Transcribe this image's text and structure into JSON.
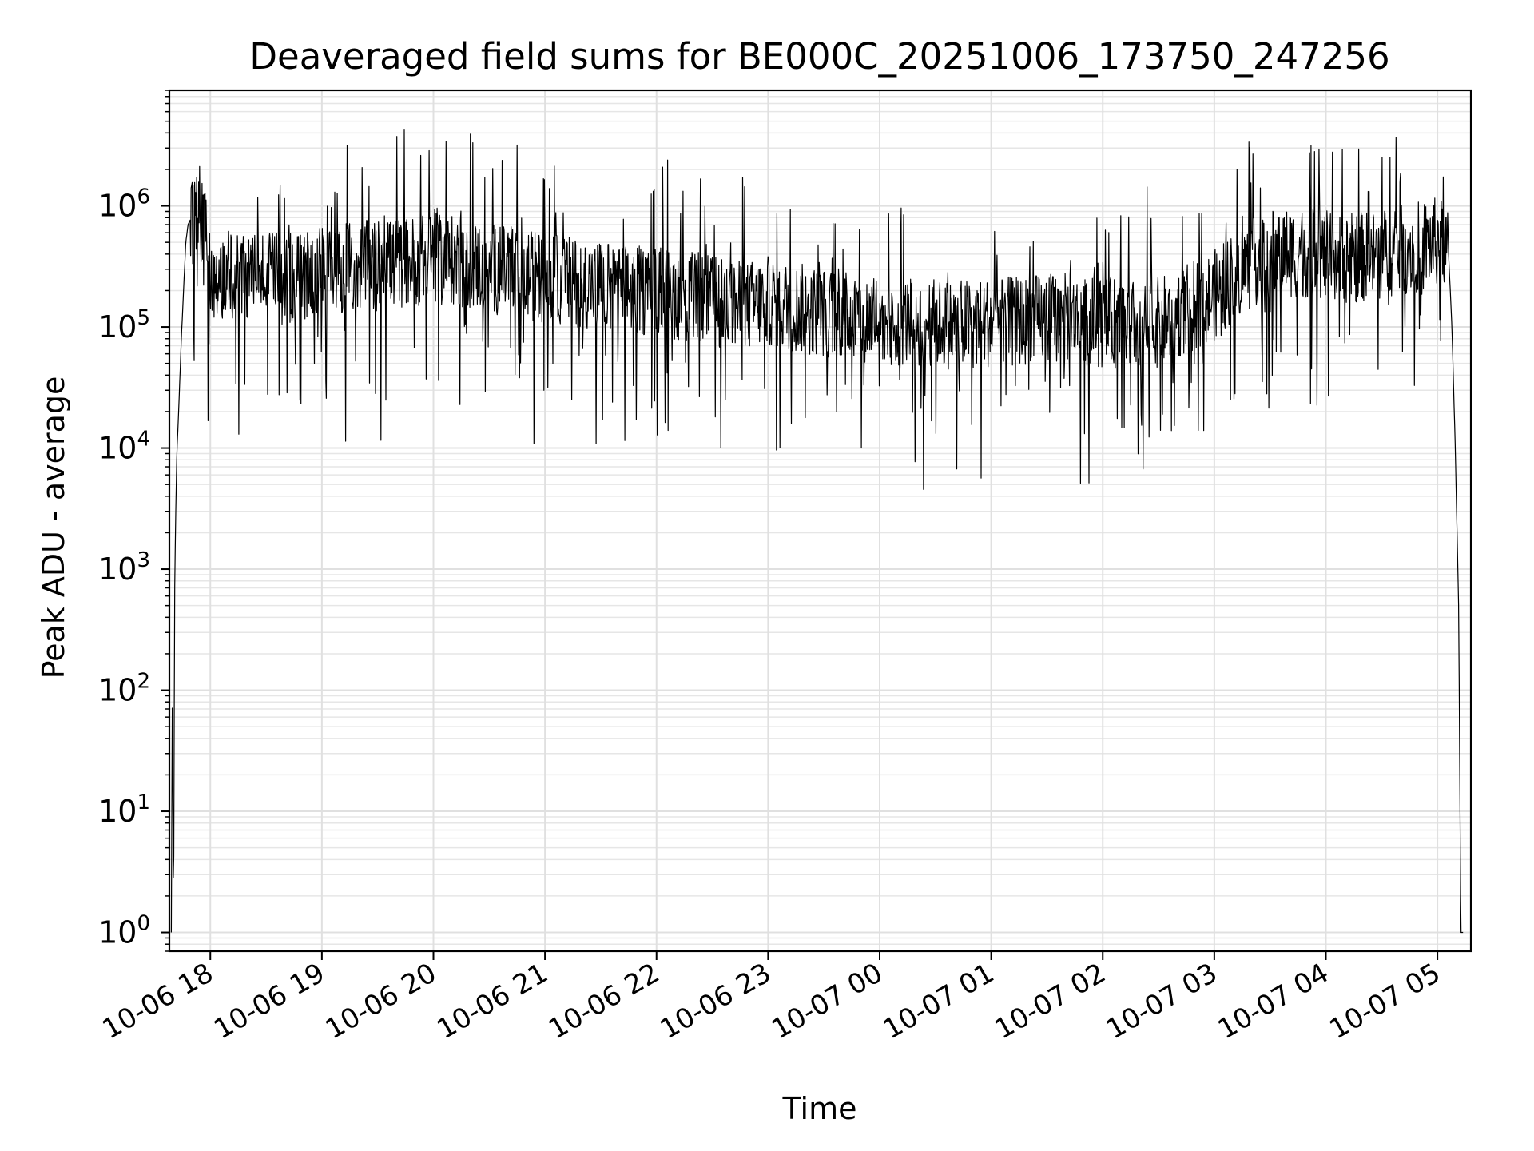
{
  "chart_data": {
    "type": "line",
    "title": "Deaveraged field sums for BE000C_20251006_173750_247256",
    "xlabel": "Time",
    "ylabel": "Peak ADU - average",
    "yscale": "log",
    "ylim": [
      0.7,
      9000000
    ],
    "xlim_hours": [
      17.633,
      29.3
    ],
    "grid": true,
    "x_ticks": [
      {
        "label": "10-06 18",
        "hour": 18
      },
      {
        "label": "10-06 19",
        "hour": 19
      },
      {
        "label": "10-06 20",
        "hour": 20
      },
      {
        "label": "10-06 21",
        "hour": 21
      },
      {
        "label": "10-06 22",
        "hour": 22
      },
      {
        "label": "10-06 23",
        "hour": 23
      },
      {
        "label": "10-07 00",
        "hour": 24
      },
      {
        "label": "10-07 01",
        "hour": 25
      },
      {
        "label": "10-07 02",
        "hour": 26
      },
      {
        "label": "10-07 03",
        "hour": 27
      },
      {
        "label": "10-07 04",
        "hour": 28
      },
      {
        "label": "10-07 05",
        "hour": 29
      }
    ],
    "y_ticks": [
      {
        "base": "10",
        "exp": "0",
        "value": 1
      },
      {
        "base": "10",
        "exp": "1",
        "value": 10
      },
      {
        "base": "10",
        "exp": "2",
        "value": 100
      },
      {
        "base": "10",
        "exp": "3",
        "value": 1000
      },
      {
        "base": "10",
        "exp": "4",
        "value": 10000
      },
      {
        "base": "10",
        "exp": "5",
        "value": 100000
      },
      {
        "base": "10",
        "exp": "6",
        "value": 1000000
      }
    ],
    "series": [
      {
        "name": "Peak ADU - average",
        "color": "#000000",
        "envelope_hours": [
          17.65,
          17.66,
          17.67,
          17.68,
          17.69,
          17.7,
          17.72,
          17.74,
          17.76,
          17.78,
          17.8,
          17.83,
          17.87,
          17.95,
          18.0,
          18.1,
          18.2,
          18.3,
          18.45,
          18.6,
          18.8,
          19.0,
          19.2,
          19.4,
          19.6,
          19.8,
          20.0,
          20.2,
          20.4,
          20.6,
          20.8,
          21.0,
          21.2,
          21.4,
          21.6,
          21.8,
          22.0,
          22.2,
          22.4,
          22.6,
          22.8,
          23.0,
          23.2,
          23.4,
          23.6,
          23.8,
          24.0,
          24.2,
          24.4,
          24.6,
          24.8,
          25.0,
          25.2,
          25.4,
          25.6,
          25.8,
          26.0,
          26.2,
          26.4,
          26.6,
          26.8,
          27.0,
          27.2,
          27.4,
          27.6,
          27.8,
          28.0,
          28.2,
          28.4,
          28.6,
          28.8,
          29.0,
          29.05,
          29.1,
          29.13,
          29.16,
          29.19,
          29.21,
          29.23
        ],
        "envelope_values": [
          1,
          120,
          1,
          600,
          3000,
          9000,
          25000,
          80000,
          200000,
          500000,
          700000,
          800000,
          800000,
          900000,
          300000,
          300000,
          280000,
          300000,
          300000,
          260000,
          280000,
          320000,
          330000,
          350000,
          360000,
          380000,
          400000,
          380000,
          350000,
          320000,
          300000,
          280000,
          260000,
          250000,
          230000,
          220000,
          210000,
          200000,
          190000,
          170000,
          160000,
          180000,
          160000,
          150000,
          140000,
          130000,
          130000,
          120000,
          120000,
          115000,
          115000,
          120000,
          120000,
          125000,
          130000,
          125000,
          120000,
          115000,
          110000,
          130000,
          160000,
          200000,
          300000,
          400000,
          450000,
          450000,
          420000,
          400000,
          420000,
          450000,
          500000,
          550000,
          600000,
          400000,
          100000,
          10000,
          500,
          1,
          1
        ]
      }
    ]
  }
}
